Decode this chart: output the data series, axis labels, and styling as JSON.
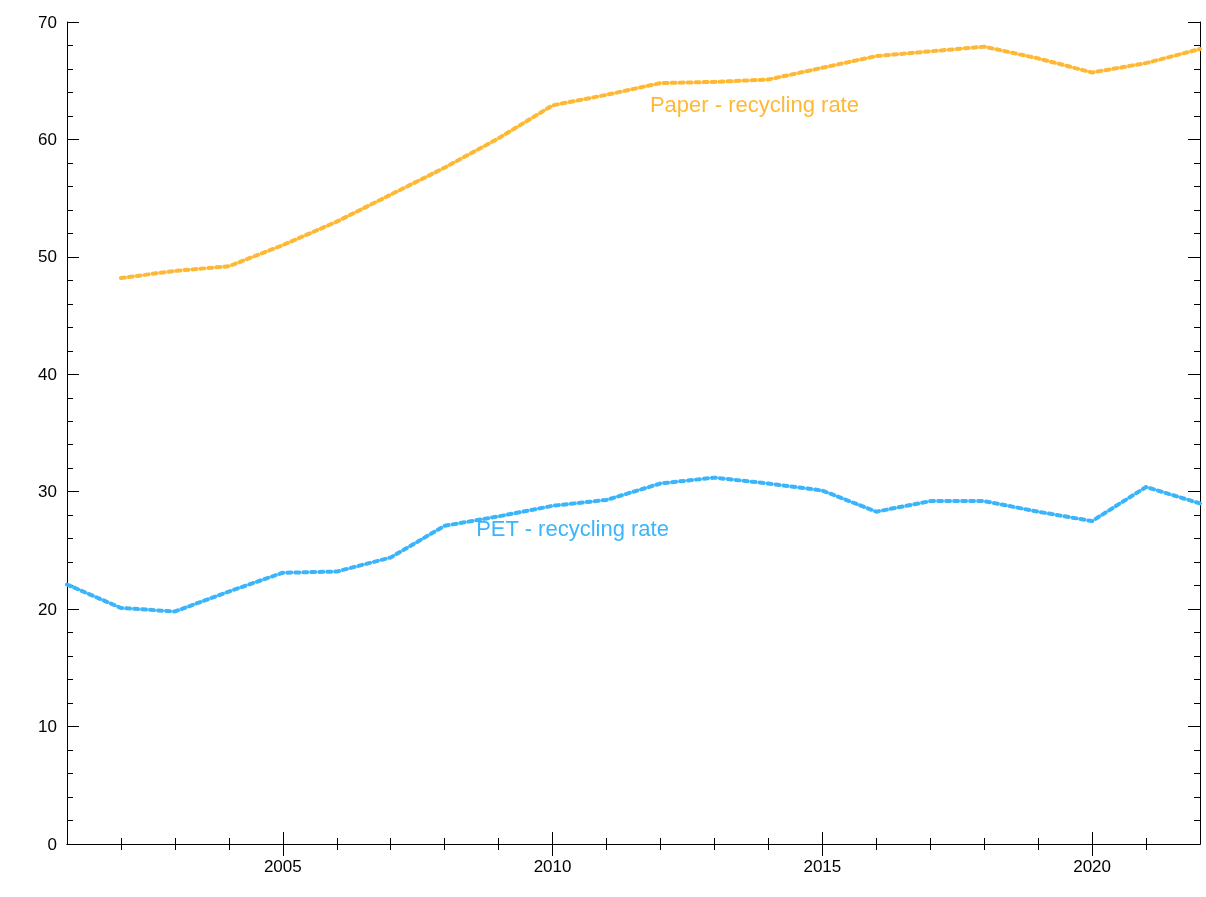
{
  "chart_data": {
    "type": "line",
    "x": [
      2001,
      2002,
      2003,
      2004,
      2005,
      2006,
      2007,
      2008,
      2009,
      2010,
      2011,
      2012,
      2013,
      2014,
      2015,
      2016,
      2017,
      2018,
      2019,
      2020,
      2021,
      2022
    ],
    "series": [
      {
        "name": "Paper - recycling rate",
        "color": "#ffb833",
        "values": [
          null,
          48.2,
          48.8,
          49.2,
          51.0,
          53.0,
          55.3,
          57.6,
          60.1,
          62.9,
          63.8,
          64.8,
          64.9,
          65.1,
          66.1,
          67.1,
          67.5,
          67.9,
          66.9,
          65.7,
          66.5,
          67.7
        ]
      },
      {
        "name": "PET - recycling rate",
        "color": "#3ab4fa",
        "values": [
          22.1,
          20.1,
          19.8,
          21.5,
          23.1,
          23.2,
          24.4,
          27.1,
          27.9,
          28.8,
          29.3,
          30.7,
          31.2,
          30.7,
          30.1,
          28.3,
          29.2,
          29.2,
          28.3,
          27.5,
          30.4,
          29.0
        ]
      }
    ],
    "xlim": [
      2001,
      2022
    ],
    "xticks": [
      2005,
      2010,
      2015,
      2020
    ],
    "ylim": [
      0,
      70
    ],
    "yticks": [
      0,
      10,
      20,
      30,
      40,
      50,
      60,
      70
    ],
    "grid": false,
    "legend": false,
    "marker": "none",
    "line_style": "dotted"
  }
}
